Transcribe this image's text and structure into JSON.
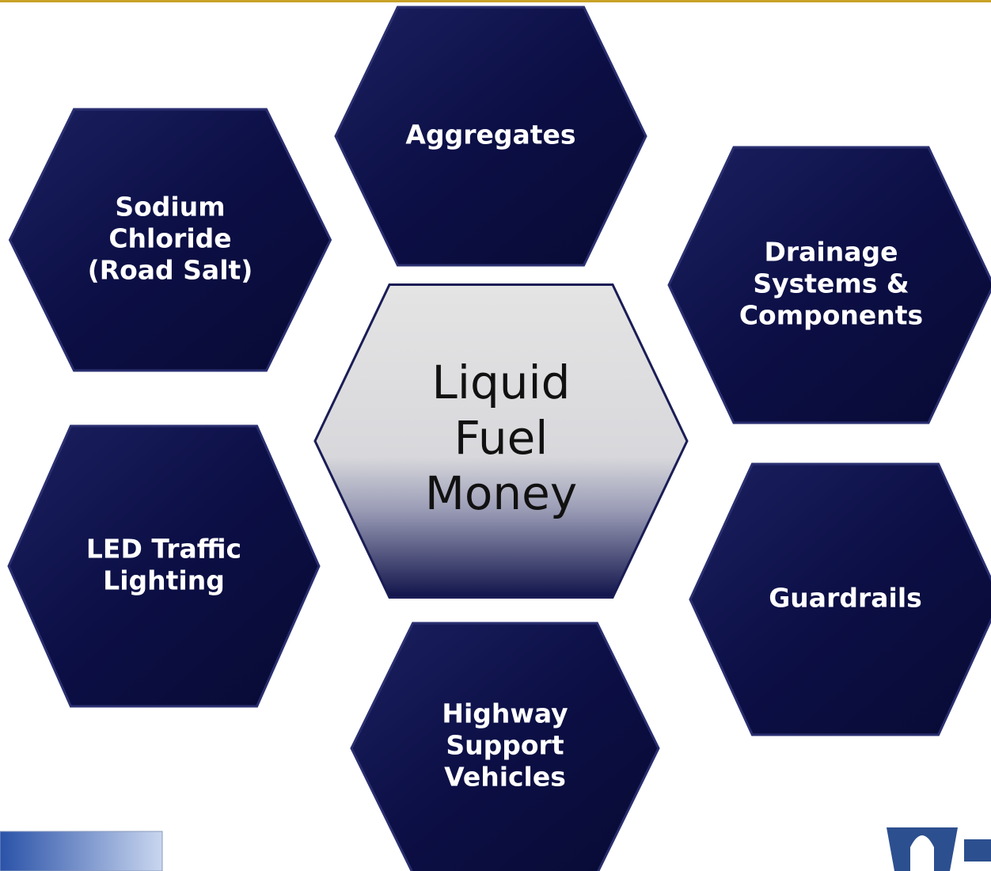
{
  "center": {
    "lines": [
      "Liquid",
      "Fuel",
      "Money"
    ]
  },
  "nodes": [
    {
      "lines": [
        "Aggregates"
      ]
    },
    {
      "lines": [
        "Sodium",
        "Chloride",
        "(Road Salt)"
      ]
    },
    {
      "lines": [
        "Drainage",
        "Systems &",
        "Components"
      ]
    },
    {
      "lines": [
        "LED Traffic",
        "Lighting"
      ]
    },
    {
      "lines": [
        "Guardrails"
      ]
    },
    {
      "lines": [
        "Highway",
        "Support",
        "Vehicles"
      ]
    }
  ]
}
